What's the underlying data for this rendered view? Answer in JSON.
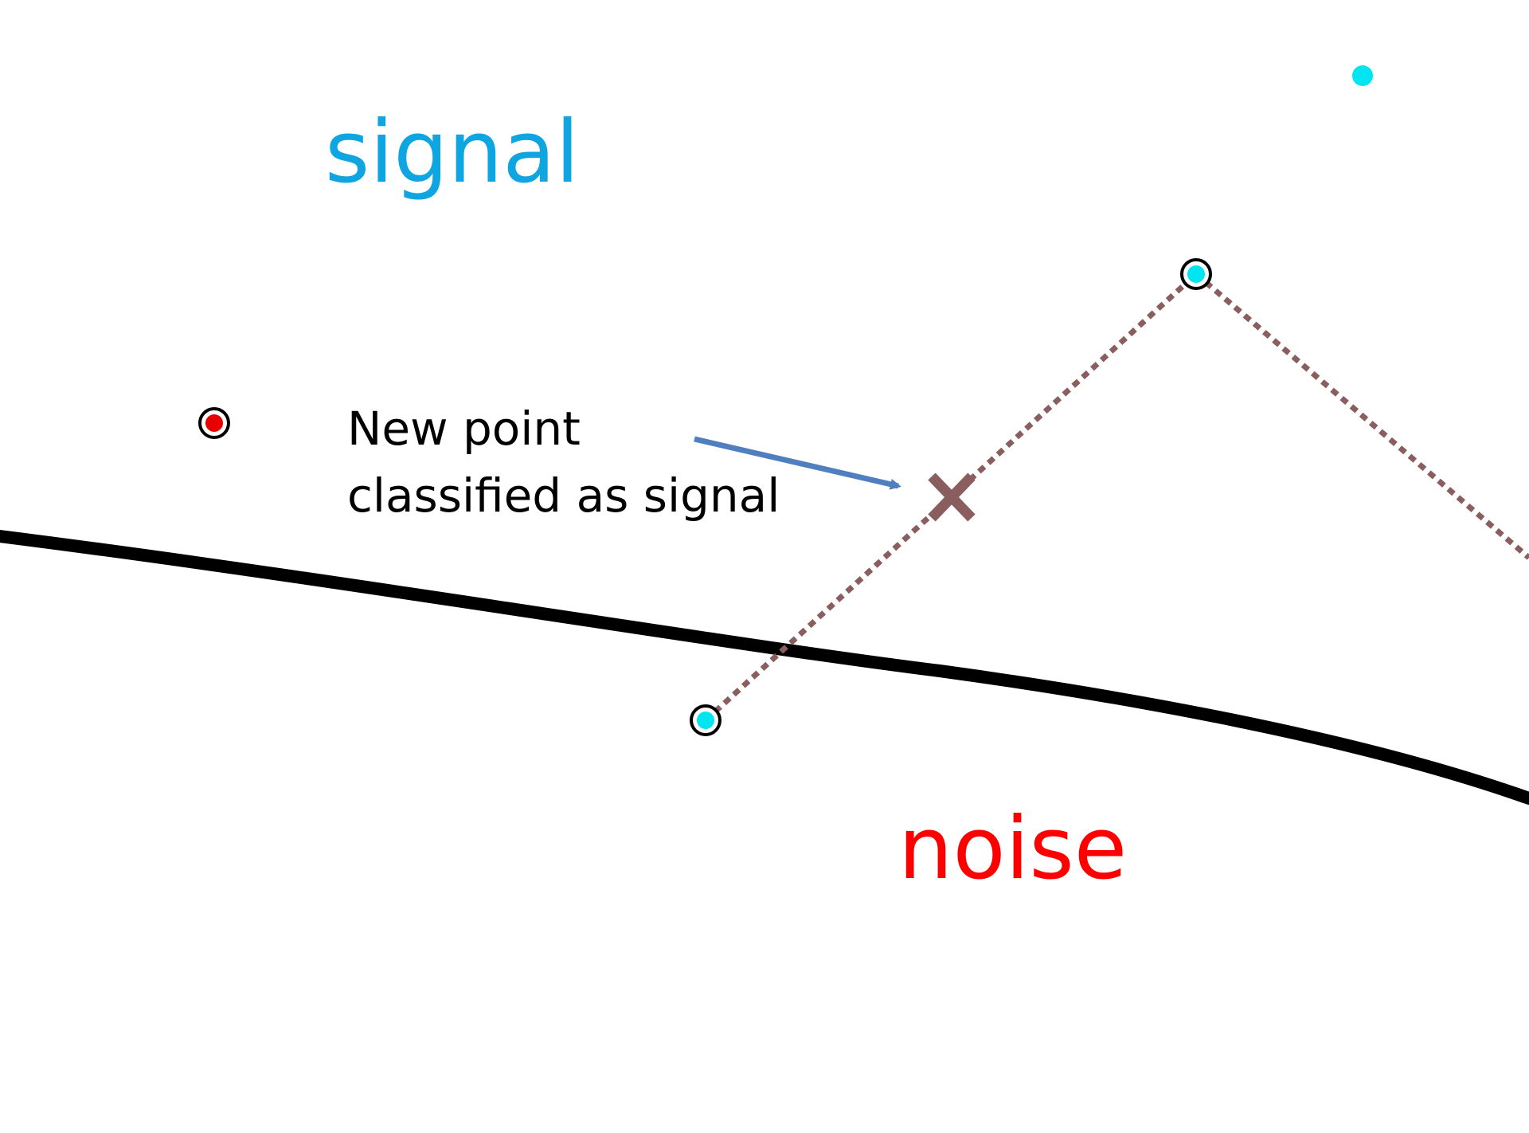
{
  "labels": {
    "signal": "signal",
    "noise": "noise"
  },
  "annotation": {
    "line1": "New point",
    "line2": "classified as signal"
  },
  "colors": {
    "signal_text": "#0ea5e0",
    "noise_text": "#ff0000",
    "signal_point": "#00e5f0",
    "noise_point": "#e60000",
    "boundary": "#000000",
    "neighbor_line": "#8a5e5e",
    "new_point_marker": "#8a5e5e",
    "arrow": "#4f7fbf"
  },
  "icons": {
    "new_point": "cross-icon",
    "arrow": "arrow-right-icon"
  }
}
